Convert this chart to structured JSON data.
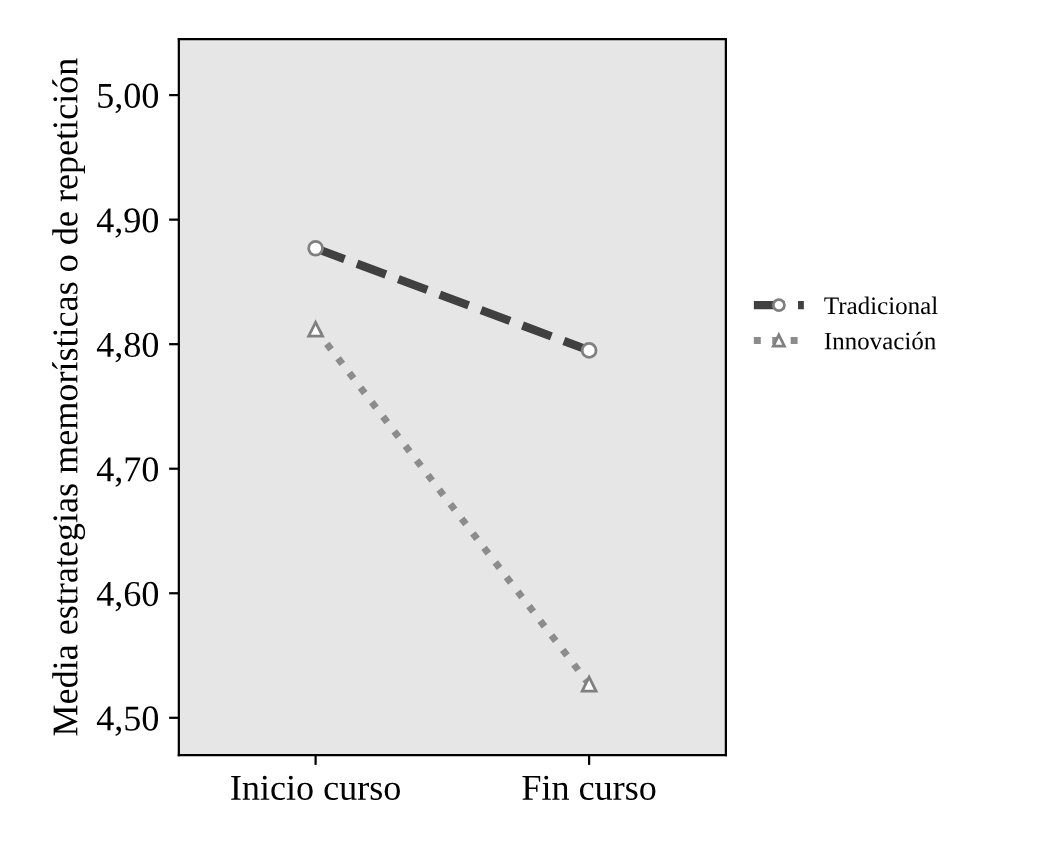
{
  "chart_data": {
    "type": "line",
    "ylabel": "Media estrategias memorísticas o de repetición",
    "categories": [
      "Inicio curso",
      "Fin curso"
    ],
    "series": [
      {
        "name": "Tradicional",
        "color": "#404040",
        "values": [
          4.877,
          4.795
        ],
        "marker": "circle",
        "line_style": "dashed"
      },
      {
        "name": "Innovación",
        "color": "#8c8c8c",
        "values": [
          4.812,
          4.527
        ],
        "marker": "triangle",
        "line_style": "dotted"
      }
    ],
    "ylim": [
      4.47,
      5.045
    ],
    "yticks": [
      {
        "value": 4.5,
        "label": "4,50"
      },
      {
        "value": 4.6,
        "label": "4,60"
      },
      {
        "value": 4.7,
        "label": "4,70"
      },
      {
        "value": 4.8,
        "label": "4,80"
      },
      {
        "value": 4.9,
        "label": "4,90"
      },
      {
        "value": 5.0,
        "label": "5,00"
      }
    ],
    "grid": false,
    "legend": "right"
  }
}
